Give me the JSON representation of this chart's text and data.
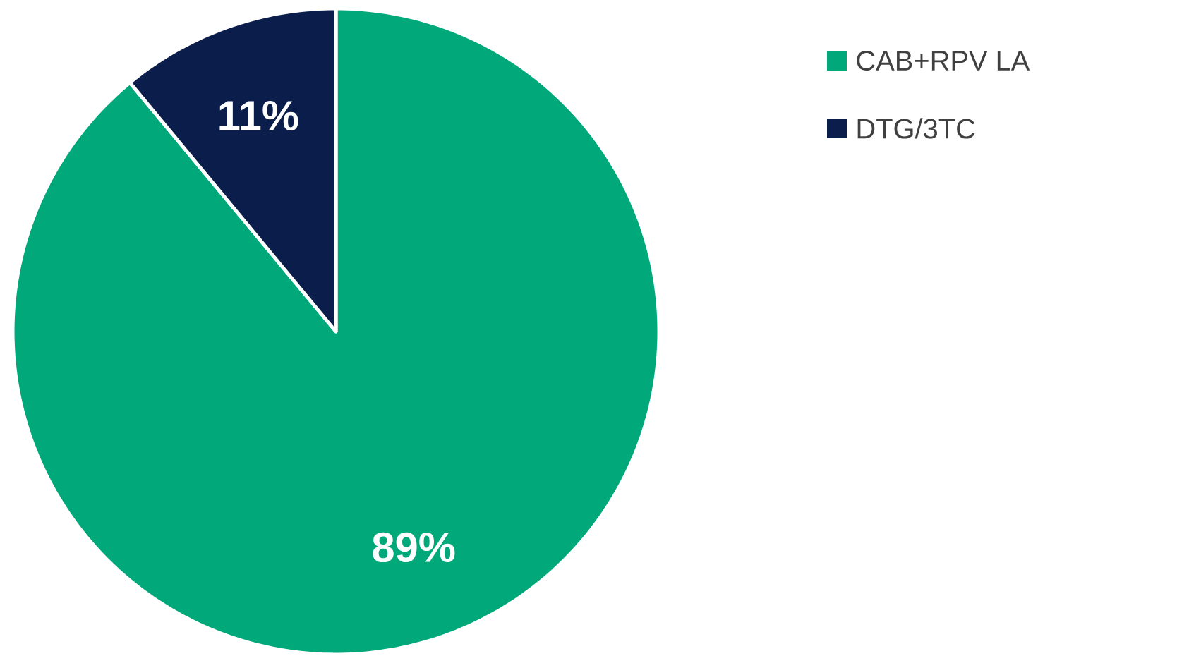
{
  "chart_data": {
    "type": "pie",
    "categories": [
      "CAB+RPV LA",
      "DTG/3TC"
    ],
    "values": [
      89,
      11
    ],
    "colors": [
      "#00a87a",
      "#0b1d4a"
    ],
    "value_labels": [
      "89%",
      "11%"
    ],
    "legend": "top right"
  }
}
